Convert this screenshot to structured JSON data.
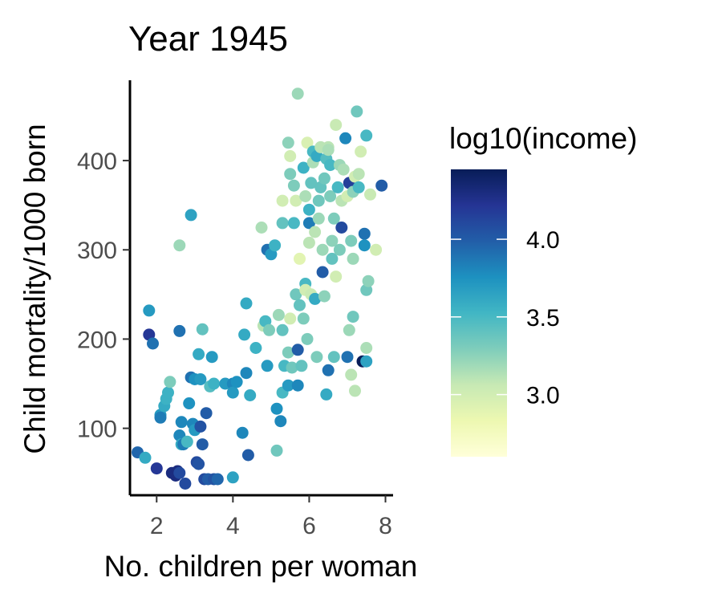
{
  "chart_data": {
    "type": "scatter",
    "title": "Year 1945",
    "xlabel": "No. children per woman",
    "ylabel": "Child mortality/1000 born",
    "xlim": [
      1.3,
      8.2
    ],
    "ylim": [
      25,
      490
    ],
    "x_ticks": [
      2,
      4,
      6,
      8
    ],
    "x_tick_labels": [
      "2",
      "4",
      "6",
      "8"
    ],
    "y_ticks": [
      100,
      200,
      300,
      400
    ],
    "y_tick_labels": [
      "100",
      "200",
      "300",
      "400"
    ],
    "grid": false,
    "legend": {
      "title": "log10(income)",
      "position": "right",
      "range": [
        2.6,
        4.45
      ],
      "ticks": [
        3.0,
        3.5,
        4.0
      ],
      "tick_labels": [
        "3.0",
        "3.5",
        "4.0"
      ],
      "colors": [
        "#ffffd9",
        "#edf8b1",
        "#c7e9b4",
        "#7fcdbb",
        "#41b6c4",
        "#1d91c0",
        "#225ea8",
        "#253494",
        "#081d58"
      ]
    },
    "points": [
      [
        1.5,
        73,
        3.95
      ],
      [
        1.7,
        67,
        3.6
      ],
      [
        1.8,
        232,
        3.7
      ],
      [
        1.8,
        205,
        4.2
      ],
      [
        1.9,
        195,
        3.9
      ],
      [
        2.0,
        55,
        4.2
      ],
      [
        2.1,
        115,
        3.7
      ],
      [
        2.1,
        112,
        3.85
      ],
      [
        2.2,
        125,
        3.6
      ],
      [
        2.25,
        133,
        3.55
      ],
      [
        2.3,
        140,
        3.55
      ],
      [
        2.35,
        152,
        3.3
      ],
      [
        2.4,
        50,
        4.3
      ],
      [
        2.5,
        47,
        4.3
      ],
      [
        2.55,
        52,
        4.3
      ],
      [
        2.6,
        50,
        4.1
      ],
      [
        2.6,
        92,
        3.8
      ],
      [
        2.6,
        209,
        3.9
      ],
      [
        2.6,
        305,
        3.2
      ],
      [
        2.65,
        107,
        3.8
      ],
      [
        2.65,
        82,
        3.6
      ],
      [
        2.7,
        82,
        3.85
      ],
      [
        2.75,
        38,
        4.1
      ],
      [
        2.8,
        85,
        3.5
      ],
      [
        2.85,
        128,
        3.75
      ],
      [
        2.9,
        157,
        3.9
      ],
      [
        2.9,
        339,
        3.65
      ],
      [
        2.95,
        105,
        3.8
      ],
      [
        3.0,
        98,
        3.7
      ],
      [
        3.0,
        155,
        3.75
      ],
      [
        3.05,
        62,
        4.1
      ],
      [
        3.1,
        60,
        4.05
      ],
      [
        3.1,
        183,
        3.6
      ],
      [
        3.15,
        155,
        3.7
      ],
      [
        3.15,
        102,
        4.05
      ],
      [
        3.2,
        82,
        4.0
      ],
      [
        3.2,
        211,
        3.4
      ],
      [
        3.25,
        43,
        4.1
      ],
      [
        3.3,
        117,
        4.0
      ],
      [
        3.35,
        43,
        4.0
      ],
      [
        3.4,
        147,
        3.45
      ],
      [
        3.45,
        180,
        3.7
      ],
      [
        3.5,
        150,
        3.55
      ],
      [
        3.5,
        43,
        4.05
      ],
      [
        3.6,
        43,
        3.95
      ],
      [
        3.8,
        150,
        3.7
      ],
      [
        4.0,
        150,
        3.8
      ],
      [
        4.0,
        45,
        3.65
      ],
      [
        4.0,
        140,
        3.7
      ],
      [
        4.1,
        152,
        3.75
      ],
      [
        4.25,
        95,
        3.8
      ],
      [
        4.3,
        205,
        3.6
      ],
      [
        4.35,
        240,
        3.6
      ],
      [
        4.35,
        162,
        3.8
      ],
      [
        4.4,
        70,
        4.0
      ],
      [
        4.45,
        137,
        3.6
      ],
      [
        4.6,
        190,
        3.55
      ],
      [
        4.75,
        325,
        3.15
      ],
      [
        4.8,
        215,
        3.1
      ],
      [
        4.85,
        220,
        3.5
      ],
      [
        4.9,
        300,
        3.9
      ],
      [
        4.9,
        170,
        3.7
      ],
      [
        4.95,
        210,
        3.3
      ],
      [
        5.0,
        295,
        3.7
      ],
      [
        5.1,
        305,
        3.55
      ],
      [
        5.15,
        122,
        3.75
      ],
      [
        5.15,
        75,
        3.35
      ],
      [
        5.2,
        227,
        3.2
      ],
      [
        5.25,
        108,
        3.8
      ],
      [
        5.3,
        140,
        3.5
      ],
      [
        5.3,
        210,
        3.4
      ],
      [
        5.35,
        170,
        3.5
      ],
      [
        5.3,
        330,
        3.4
      ],
      [
        5.3,
        355,
        3.0
      ],
      [
        5.45,
        148,
        3.7
      ],
      [
        5.45,
        420,
        3.25
      ],
      [
        5.45,
        185,
        3.3
      ],
      [
        5.5,
        405,
        3.0
      ],
      [
        5.5,
        223,
        3.0
      ],
      [
        5.5,
        385,
        3.3
      ],
      [
        5.55,
        168,
        3.35
      ],
      [
        5.6,
        330,
        3.5
      ],
      [
        5.6,
        372,
        3.3
      ],
      [
        5.65,
        250,
        3.35
      ],
      [
        5.65,
        355,
        3.0
      ],
      [
        5.7,
        148,
        3.8
      ],
      [
        5.7,
        188,
        4.0
      ],
      [
        5.7,
        475,
        3.2
      ],
      [
        5.75,
        290,
        2.9
      ],
      [
        5.75,
        238,
        3.4
      ],
      [
        5.8,
        170,
        3.4
      ],
      [
        5.85,
        392,
        3.55
      ],
      [
        5.85,
        223,
        3.3
      ],
      [
        5.9,
        262,
        3.5
      ],
      [
        5.9,
        255,
        3.0
      ],
      [
        5.9,
        360,
        3.15
      ],
      [
        5.95,
        420,
        2.95
      ],
      [
        5.95,
        200,
        3.3
      ],
      [
        6.0,
        330,
        3.85
      ],
      [
        6.0,
        308,
        3.1
      ],
      [
        6.0,
        345,
        3.55
      ],
      [
        6.05,
        375,
        3.4
      ],
      [
        6.05,
        250,
        3.05
      ],
      [
        6.1,
        410,
        3.5
      ],
      [
        6.1,
        398,
        3.15
      ],
      [
        6.15,
        245,
        3.6
      ],
      [
        6.15,
        320,
        3.1
      ],
      [
        6.2,
        405,
        3.6
      ],
      [
        6.2,
        180,
        3.3
      ],
      [
        6.25,
        335,
        3.2
      ],
      [
        6.25,
        355,
        3.35
      ],
      [
        6.3,
        370,
        3.4
      ],
      [
        6.3,
        415,
        3.1
      ],
      [
        6.35,
        275,
        4.0
      ],
      [
        6.35,
        300,
        3.2
      ],
      [
        6.4,
        248,
        3.25
      ],
      [
        6.4,
        380,
        3.35
      ],
      [
        6.45,
        402,
        3.45
      ],
      [
        6.45,
        138,
        3.6
      ],
      [
        6.5,
        415,
        3.1
      ],
      [
        6.5,
        165,
        3.9
      ],
      [
        6.5,
        412,
        3.15
      ],
      [
        6.55,
        360,
        3.3
      ],
      [
        6.55,
        395,
        3.5
      ],
      [
        6.6,
        310,
        3.25
      ],
      [
        6.6,
        290,
        3.4
      ],
      [
        6.65,
        335,
        3.3
      ],
      [
        6.65,
        180,
        3.4
      ],
      [
        6.7,
        440,
        3.05
      ],
      [
        6.7,
        270,
        3.0
      ],
      [
        6.75,
        370,
        3.5
      ],
      [
        6.8,
        395,
        3.2
      ],
      [
        6.8,
        300,
        3.3
      ],
      [
        6.85,
        355,
        3.1
      ],
      [
        6.85,
        325,
        4.1
      ],
      [
        6.9,
        390,
        3.15
      ],
      [
        6.95,
        425,
        3.8
      ],
      [
        7.0,
        180,
        3.9
      ],
      [
        7.0,
        360,
        3.0
      ],
      [
        7.05,
        375,
        4.15
      ],
      [
        7.05,
        210,
        3.2
      ],
      [
        7.1,
        310,
        3.3
      ],
      [
        7.1,
        160,
        3.1
      ],
      [
        7.15,
        365,
        3.25
      ],
      [
        7.15,
        290,
        3.2
      ],
      [
        7.15,
        225,
        3.35
      ],
      [
        7.2,
        382,
        3.0
      ],
      [
        7.2,
        142,
        3.1
      ],
      [
        7.25,
        455,
        3.35
      ],
      [
        7.3,
        370,
        3.5
      ],
      [
        7.3,
        385,
        3.1
      ],
      [
        7.35,
        410,
        3.0
      ],
      [
        7.4,
        175,
        4.45
      ],
      [
        7.45,
        318,
        3.9
      ],
      [
        7.45,
        305,
        3.75
      ],
      [
        7.5,
        255,
        3.35
      ],
      [
        7.5,
        428,
        3.5
      ],
      [
        7.5,
        190,
        3.15
      ],
      [
        7.5,
        175,
        3.65
      ],
      [
        7.55,
        265,
        3.25
      ],
      [
        7.6,
        362,
        3.05
      ],
      [
        7.75,
        300,
        3.0
      ],
      [
        7.9,
        372,
        4.0
      ]
    ]
  }
}
